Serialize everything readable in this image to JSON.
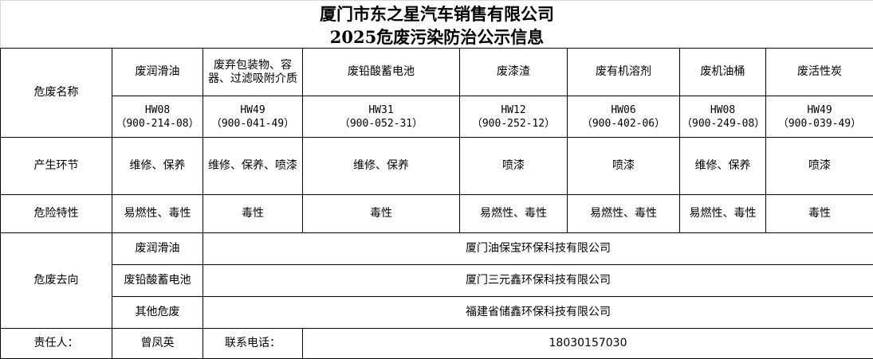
{
  "title": {
    "line1": "厦门市东之星汽车销售有限公司",
    "line2": "2025危废污染防治公示信息"
  },
  "row_labels": {
    "name": "危废名称",
    "process": "产生环节",
    "hazard": "危险特性",
    "destination": "危废去向",
    "responsible": "责任人：",
    "phone_label": "联系电话："
  },
  "wastes": [
    {
      "name": "废润滑油",
      "code": "HW08",
      "sub_code": "（900-214-08）",
      "process": "维修、保养",
      "hazard": "易燃性、毒性"
    },
    {
      "name": "废弃包装物、容器、过滤吸附介质",
      "code": "HW49",
      "sub_code": "（900-041-49）",
      "process": "维修、保养、喷漆",
      "hazard": "毒性"
    },
    {
      "name": "废铅酸蓄电池",
      "code": "HW31",
      "sub_code": "（900-052-31）",
      "process": "维修、保养",
      "hazard": "毒性"
    },
    {
      "name": "废漆渣",
      "code": "HW12",
      "sub_code": "（900-252-12）",
      "process": "喷漆",
      "hazard": "易燃性、毒性"
    },
    {
      "name": "废有机溶剂",
      "code": "HW06",
      "sub_code": "（900-402-06）",
      "process": "喷漆",
      "hazard": "易燃性、毒性"
    },
    {
      "name": "废机油桶",
      "code": "HW08",
      "sub_code": "（900-249-08）",
      "process": "维修、保养",
      "hazard": "易燃性、毒性"
    },
    {
      "name": "废活性炭",
      "code": "HW49",
      "sub_code": "（900-039-49）",
      "process": "喷漆",
      "hazard": "毒性"
    }
  ],
  "destinations": [
    {
      "type": "废润滑油",
      "company": "厦门油保宝环保科技有限公司"
    },
    {
      "type": "废铅酸蓄电池",
      "company": "厦门三元鑫环保科技有限公司"
    },
    {
      "type": "其他危废",
      "company": "福建省储鑫环保科技有限公司"
    }
  ],
  "contact": {
    "person": "曾凤英",
    "phone": "18030157030"
  }
}
